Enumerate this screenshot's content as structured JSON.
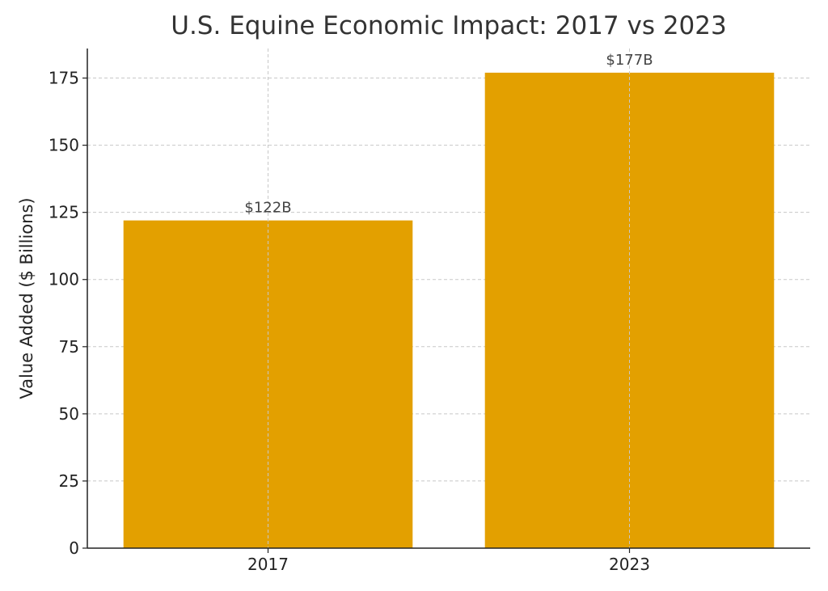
{
  "chart_data": {
    "type": "bar",
    "title": "U.S. Equine Economic Impact: 2017 vs 2023",
    "xlabel": "",
    "ylabel": "Value Added ($ Billions)",
    "categories": [
      "2017",
      "2023"
    ],
    "values": [
      122,
      177
    ],
    "value_labels": [
      "$122B",
      "$177B"
    ],
    "ylim": [
      0,
      186
    ],
    "yticks": [
      0,
      25,
      50,
      75,
      100,
      125,
      150,
      175
    ],
    "grid": true,
    "bar_color": "#E3A000",
    "legend": "none"
  }
}
